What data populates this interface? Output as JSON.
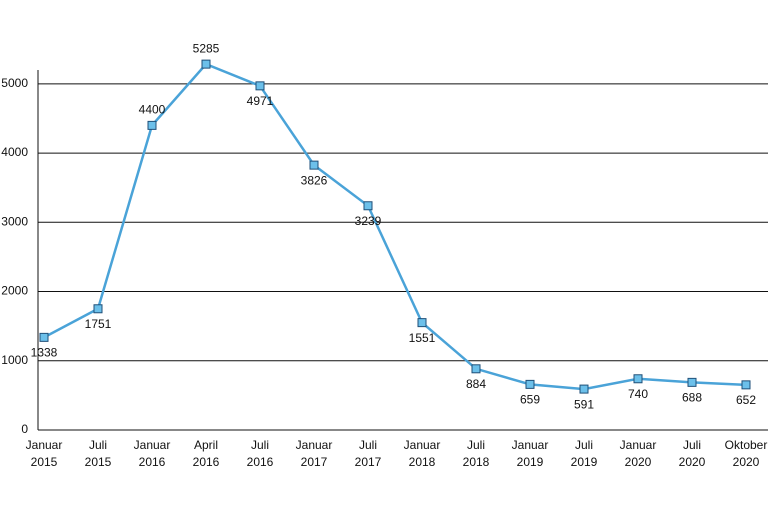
{
  "chart_data": {
    "type": "line",
    "categories": [
      "Januar 2015",
      "Juli 2015",
      "Januar 2016",
      "April 2016",
      "Juli 2016",
      "Januar 2017",
      "Juli 2017",
      "Januar 2018",
      "Juli 2018",
      "Januar 2019",
      "Juli 2019",
      "Januar 2020",
      "Juli 2020",
      "Oktober 2020"
    ],
    "values": [
      1338,
      1751,
      4400,
      5285,
      4971,
      3826,
      3239,
      1551,
      884,
      659,
      591,
      740,
      688,
      652
    ],
    "color": "#4aa3d8",
    "ylim": [
      0,
      5200
    ],
    "yticks": [
      0,
      1000,
      2000,
      3000,
      4000,
      5000
    ],
    "grid": true
  }
}
